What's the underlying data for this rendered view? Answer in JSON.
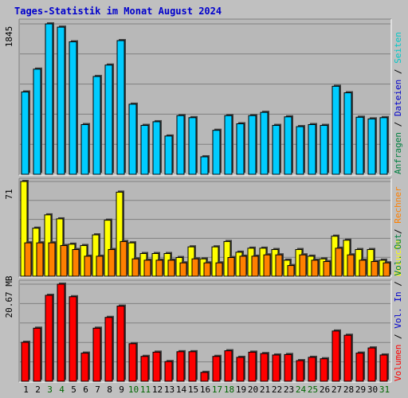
{
  "title": "Tages-Statistik im Monat August 2024",
  "colors": {
    "background": "#c0c0c0",
    "panel": "#b8b8b8",
    "title": "#0000cc",
    "gridline": "#808080",
    "weekday_label": "#000000",
    "weekend_label": "#006600",
    "anfragen": "#00ccff",
    "dateien": "#008080",
    "seiten": "#00c8c8",
    "besuche": "#ffff00",
    "rechner": "#ff8000",
    "volumen": "#ff0000"
  },
  "chart_data": [
    {
      "type": "bar",
      "panel": "hits",
      "max_label": "1845",
      "ylim": [
        0,
        1845
      ],
      "right_labels": [
        {
          "text": "Anfragen",
          "color": "#008040"
        },
        {
          "text": " / ",
          "color": "#000000"
        },
        {
          "text": "Dateien",
          "color": "#0000cc"
        },
        {
          "text": " / ",
          "color": "#000000"
        },
        {
          "text": "Seiten",
          "color": "#00c8c8"
        }
      ],
      "categories": [
        "1",
        "2",
        "3",
        "4",
        "5",
        "6",
        "7",
        "8",
        "9",
        "10",
        "11",
        "12",
        "13",
        "14",
        "15",
        "16",
        "17",
        "18",
        "19",
        "20",
        "21",
        "22",
        "23",
        "24",
        "25",
        "26",
        "27",
        "28",
        "29",
        "30",
        "31"
      ],
      "weekend": [
        3,
        4,
        10,
        11,
        17,
        18,
        24,
        25,
        31
      ],
      "series": [
        {
          "name": "Anfragen",
          "values": [
            1010,
            1290,
            1845,
            1805,
            1625,
            610,
            1200,
            1340,
            1640,
            860,
            600,
            645,
            470,
            720,
            695,
            215,
            540,
            720,
            620,
            720,
            760,
            600,
            705,
            585,
            610,
            600,
            1080,
            1000,
            700,
            680,
            695
          ]
        }
      ]
    },
    {
      "type": "bar",
      "panel": "visits",
      "max_label": "71",
      "ylim": [
        0,
        71
      ],
      "right_labels": [
        {
          "text": "Besuche",
          "color": "#ffff00"
        },
        {
          "text": " / ",
          "color": "#000000"
        },
        {
          "text": "Rechner",
          "color": "#ff8000"
        }
      ],
      "categories": [
        "1",
        "2",
        "3",
        "4",
        "5",
        "6",
        "7",
        "8",
        "9",
        "10",
        "11",
        "12",
        "13",
        "14",
        "15",
        "16",
        "17",
        "18",
        "19",
        "20",
        "21",
        "22",
        "23",
        "24",
        "25",
        "26",
        "27",
        "28",
        "29",
        "30",
        "31"
      ],
      "series": [
        {
          "name": "Besuche",
          "values": [
            71,
            36,
            46,
            43,
            24,
            23,
            31,
            42,
            63,
            25,
            17,
            17,
            17,
            14,
            22,
            13,
            22,
            26,
            18,
            21,
            21,
            20,
            12,
            20,
            15,
            13,
            30,
            27,
            20,
            20,
            12
          ]
        },
        {
          "name": "Rechner",
          "values": [
            25,
            25,
            25,
            23,
            20,
            15,
            15,
            20,
            26,
            13,
            12,
            12,
            12,
            10,
            13,
            10,
            10,
            14,
            15,
            15,
            16,
            16,
            8,
            16,
            12,
            11,
            21,
            16,
            12,
            11,
            10
          ]
        }
      ]
    },
    {
      "type": "bar",
      "panel": "volume",
      "max_label": "20.67 MB",
      "ylim": [
        0,
        20.67
      ],
      "right_labels": [
        {
          "text": "Volumen",
          "color": "#ff0000"
        },
        {
          "text": " / ",
          "color": "#000000"
        },
        {
          "text": "Vol. In",
          "color": "#0000cc"
        },
        {
          "text": " / ",
          "color": "#000000"
        },
        {
          "text": "Vol. Out",
          "color": "#008040"
        }
      ],
      "categories": [
        "1",
        "2",
        "3",
        "4",
        "5",
        "6",
        "7",
        "8",
        "9",
        "10",
        "11",
        "12",
        "13",
        "14",
        "15",
        "16",
        "17",
        "18",
        "19",
        "20",
        "21",
        "22",
        "23",
        "24",
        "25",
        "26",
        "27",
        "28",
        "29",
        "30",
        "31"
      ],
      "series": [
        {
          "name": "Volumen",
          "values": [
            8.3,
            11.3,
            18.3,
            20.67,
            18.0,
            6.0,
            11.3,
            13.6,
            16.0,
            8.0,
            5.3,
            6.2,
            4.2,
            6.3,
            6.3,
            1.9,
            5.3,
            6.5,
            5.1,
            6.2,
            5.9,
            5.6,
            5.7,
            4.4,
            5.1,
            4.8,
            10.7,
            9.8,
            6.0,
            7.1,
            5.6
          ]
        }
      ]
    }
  ]
}
